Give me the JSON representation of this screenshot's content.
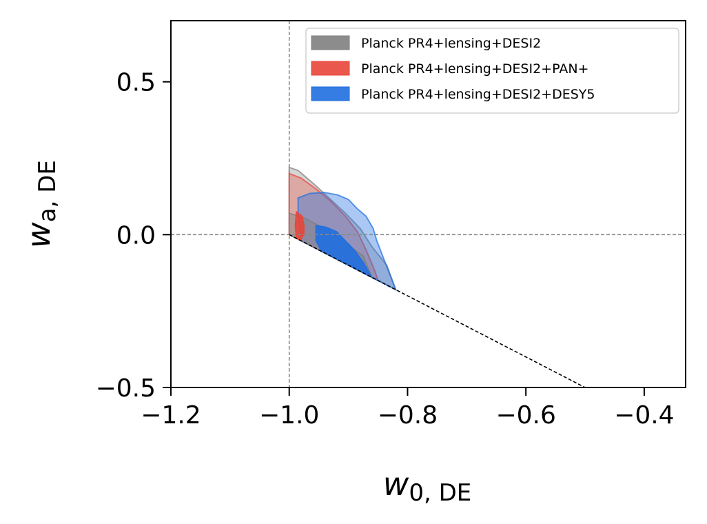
{
  "chart_data": {
    "type": "contour",
    "title": "",
    "xlabel": {
      "main": "w",
      "sub": "0, DE"
    },
    "ylabel": {
      "main": "w",
      "sub": "a, DE"
    },
    "xlim": [
      -1.2,
      -0.33
    ],
    "ylim": [
      -0.5,
      0.7
    ],
    "xticks": [
      -1.2,
      -1.0,
      -0.8,
      -0.6,
      -0.4
    ],
    "yticks": [
      -0.5,
      0.0,
      0.5
    ],
    "xtick_labels": [
      "−1.2",
      "−1.0",
      "−0.8",
      "−0.6",
      "−0.4"
    ],
    "ytick_labels": [
      "−0.5",
      "0.0",
      "0.5"
    ],
    "reference_lines": [
      {
        "kind": "vertical",
        "x": -1.0,
        "color": "#888888"
      },
      {
        "kind": "horizontal",
        "y": 0.0,
        "color": "#888888"
      },
      {
        "kind": "line",
        "points": [
          [
            -1.0,
            0.0
          ],
          [
            -0.5,
            -0.5
          ]
        ],
        "color": "#000000",
        "note": "w0 + wa = -1 prior boundary"
      }
    ],
    "legend_position": "top-right",
    "series": [
      {
        "name": "Planck PR4+lensing+DESI2",
        "color": "#7f7f7f",
        "outer_contour": [
          [
            -1.0,
            0.22
          ],
          [
            -0.985,
            0.21
          ],
          [
            -0.955,
            0.16
          ],
          [
            -0.93,
            0.115
          ],
          [
            -0.905,
            0.07
          ],
          [
            -0.88,
            0.02
          ],
          [
            -0.86,
            -0.04
          ],
          [
            -0.835,
            -0.1
          ],
          [
            -0.82,
            -0.18
          ],
          [
            -0.85,
            -0.15
          ],
          [
            -0.9,
            -0.1
          ],
          [
            -0.95,
            -0.05
          ],
          [
            -1.0,
            0.0
          ]
        ],
        "inner_contour": [
          [
            -1.0,
            0.07
          ],
          [
            -0.975,
            0.055
          ],
          [
            -0.95,
            0.03
          ],
          [
            -0.925,
            0.0
          ],
          [
            -0.9,
            -0.035
          ],
          [
            -0.875,
            -0.07
          ],
          [
            -0.86,
            -0.14
          ],
          [
            -0.9,
            -0.1
          ],
          [
            -0.95,
            -0.05
          ],
          [
            -1.0,
            0.0
          ]
        ]
      },
      {
        "name": "Planck PR4+lensing+DESI2+PAN+",
        "color": "#e8463a",
        "outer_contour": [
          [
            -1.0,
            0.2
          ],
          [
            -0.98,
            0.185
          ],
          [
            -0.955,
            0.15
          ],
          [
            -0.93,
            0.11
          ],
          [
            -0.905,
            0.06
          ],
          [
            -0.885,
            0.01
          ],
          [
            -0.87,
            -0.05
          ],
          [
            -0.855,
            -0.12
          ],
          [
            -0.85,
            -0.15
          ],
          [
            -0.9,
            -0.1
          ],
          [
            -0.95,
            -0.05
          ],
          [
            -1.0,
            0.0
          ]
        ],
        "inner_contour": [
          [
            -0.988,
            0.075
          ],
          [
            -0.978,
            0.06
          ],
          [
            -0.975,
            0.03
          ],
          [
            -0.975,
            0.0
          ],
          [
            -0.982,
            -0.018
          ],
          [
            -0.988,
            -0.012
          ],
          [
            -0.99,
            0.03
          ]
        ]
      },
      {
        "name": "Planck PR4+lensing+DESI2+DESY5",
        "color": "#1f6fe0",
        "outer_contour": [
          [
            -0.985,
            0.12
          ],
          [
            -0.965,
            0.135
          ],
          [
            -0.94,
            0.138
          ],
          [
            -0.918,
            0.13
          ],
          [
            -0.9,
            0.115
          ],
          [
            -0.885,
            0.085
          ],
          [
            -0.87,
            0.06
          ],
          [
            -0.858,
            0.02
          ],
          [
            -0.852,
            -0.02
          ],
          [
            -0.84,
            -0.08
          ],
          [
            -0.828,
            -0.14
          ],
          [
            -0.82,
            -0.18
          ],
          [
            -0.85,
            -0.15
          ],
          [
            -0.9,
            -0.1
          ],
          [
            -0.95,
            -0.05
          ],
          [
            -0.98,
            -0.02
          ],
          [
            -0.982,
            0.02
          ],
          [
            -0.985,
            0.07
          ]
        ],
        "inner_contour": [
          [
            -0.955,
            0.03
          ],
          [
            -0.938,
            0.025
          ],
          [
            -0.92,
            0.01
          ],
          [
            -0.905,
            -0.02
          ],
          [
            -0.89,
            -0.05
          ],
          [
            -0.875,
            -0.09
          ],
          [
            -0.86,
            -0.14
          ],
          [
            -0.9,
            -0.1
          ],
          [
            -0.945,
            -0.055
          ],
          [
            -0.955,
            -0.02
          ]
        ]
      }
    ]
  }
}
